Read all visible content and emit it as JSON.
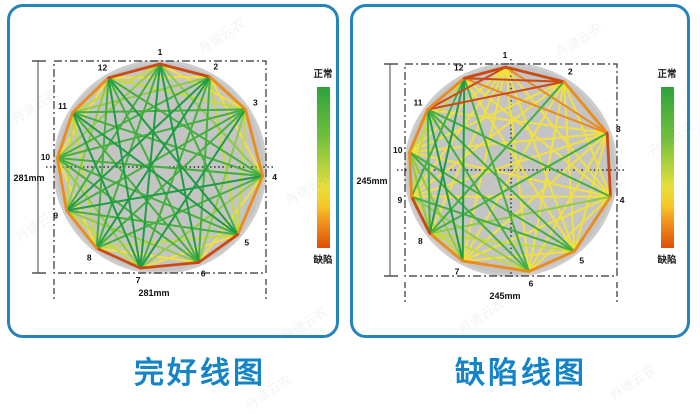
{
  "watermark": {
    "text": "舟谱云农"
  },
  "colors": {
    "panel_border": "#2584bb",
    "caption_blue": "#1584c7",
    "circle_fill": "#c4c4c4",
    "palette": {
      "R": "#cc4a12",
      "O": "#ec8b1a",
      "Y": "#f1e140",
      "YG": "#c3db3d",
      "LG": "#8fcc42",
      "G": "#44b03e",
      "DG": "#1f9c44"
    },
    "scale_gradient": [
      "#2ea23c",
      "#6fbe3d",
      "#aed23d",
      "#e8df3c",
      "#f6c728",
      "#f1921c",
      "#dd4e0c"
    ]
  },
  "panels": [
    {
      "id": "intact",
      "title": "完好线图",
      "dimension_height": "281mm",
      "dimension_width": "281mm",
      "colorbar": {
        "top_label": "正常",
        "bottom_label": "缺陷"
      },
      "has_vertical_centerline": false,
      "nodes": [
        {
          "label": "1",
          "angle": 90
        },
        {
          "label": "2",
          "angle": 61
        },
        {
          "label": "3",
          "angle": 34
        },
        {
          "label": "4",
          "angle": -5
        },
        {
          "label": "5",
          "angle": -41
        },
        {
          "label": "6",
          "angle": -68
        },
        {
          "label": "7",
          "angle": -101
        },
        {
          "label": "8",
          "angle": -128
        },
        {
          "label": "9",
          "angle": -155
        },
        {
          "label": "10",
          "angle": 175
        },
        {
          "label": "11",
          "angle": 148
        },
        {
          "label": "12",
          "angle": 120
        }
      ],
      "edges": [
        [
          "1",
          "2",
          "R"
        ],
        [
          "2",
          "3",
          "O"
        ],
        [
          "3",
          "4",
          "O"
        ],
        [
          "4",
          "5",
          "O"
        ],
        [
          "5",
          "6",
          "R"
        ],
        [
          "6",
          "7",
          "R"
        ],
        [
          "7",
          "8",
          "R"
        ],
        [
          "8",
          "9",
          "O"
        ],
        [
          "9",
          "10",
          "O"
        ],
        [
          "10",
          "11",
          "O"
        ],
        [
          "11",
          "12",
          "O"
        ],
        [
          "12",
          "1",
          "R"
        ],
        [
          "1",
          "3",
          "Y"
        ],
        [
          "2",
          "4",
          "Y"
        ],
        [
          "3",
          "5",
          "YG"
        ],
        [
          "4",
          "6",
          "Y"
        ],
        [
          "5",
          "7",
          "Y"
        ],
        [
          "6",
          "8",
          "Y"
        ],
        [
          "7",
          "9",
          "YG"
        ],
        [
          "8",
          "10",
          "Y"
        ],
        [
          "9",
          "11",
          "YG"
        ],
        [
          "10",
          "12",
          "Y"
        ],
        [
          "11",
          "1",
          "YG"
        ],
        [
          "12",
          "2",
          "Y"
        ],
        [
          "1",
          "4",
          "LG"
        ],
        [
          "2",
          "5",
          "YG"
        ],
        [
          "3",
          "6",
          "LG"
        ],
        [
          "4",
          "7",
          "LG"
        ],
        [
          "5",
          "8",
          "YG"
        ],
        [
          "6",
          "9",
          "LG"
        ],
        [
          "7",
          "10",
          "LG"
        ],
        [
          "8",
          "11",
          "YG"
        ],
        [
          "9",
          "12",
          "LG"
        ],
        [
          "10",
          "1",
          "LG"
        ],
        [
          "11",
          "2",
          "LG"
        ],
        [
          "12",
          "3",
          "YG"
        ],
        [
          "1",
          "5",
          "G"
        ],
        [
          "2",
          "6",
          "G"
        ],
        [
          "3",
          "7",
          "DG"
        ],
        [
          "4",
          "8",
          "G"
        ],
        [
          "5",
          "9",
          "G"
        ],
        [
          "6",
          "10",
          "G"
        ],
        [
          "7",
          "11",
          "DG"
        ],
        [
          "8",
          "12",
          "G"
        ],
        [
          "9",
          "1",
          "G"
        ],
        [
          "10",
          "2",
          "G"
        ],
        [
          "11",
          "3",
          "G"
        ],
        [
          "12",
          "4",
          "G"
        ],
        [
          "1",
          "6",
          "DG"
        ],
        [
          "2",
          "7",
          "G"
        ],
        [
          "3",
          "8",
          "G"
        ],
        [
          "4",
          "9",
          "DG"
        ],
        [
          "5",
          "10",
          "G"
        ],
        [
          "6",
          "11",
          "G"
        ],
        [
          "7",
          "12",
          "DG"
        ],
        [
          "8",
          "1",
          "G"
        ],
        [
          "9",
          "2",
          "DG"
        ],
        [
          "10",
          "3",
          "G"
        ],
        [
          "11",
          "4",
          "G"
        ],
        [
          "12",
          "5",
          "DG"
        ],
        [
          "1",
          "7",
          "DG"
        ],
        [
          "2",
          "8",
          "DG"
        ],
        [
          "3",
          "9",
          "G"
        ],
        [
          "4",
          "10",
          "G"
        ],
        [
          "5",
          "11",
          "DG"
        ],
        [
          "6",
          "12",
          "G"
        ]
      ]
    },
    {
      "id": "defect",
      "title": "缺陷线图",
      "dimension_height": "245mm",
      "dimension_width": "245mm",
      "colorbar": {
        "top_label": "正常",
        "bottom_label": "缺陷"
      },
      "has_vertical_centerline": true,
      "nodes": [
        {
          "label": "1",
          "angle": 93
        },
        {
          "label": "2",
          "angle": 59
        },
        {
          "label": "3",
          "angle": 21
        },
        {
          "label": "4",
          "angle": -15
        },
        {
          "label": "5",
          "angle": -52
        },
        {
          "label": "6",
          "angle": -80
        },
        {
          "label": "7",
          "angle": -118
        },
        {
          "label": "8",
          "angle": -142
        },
        {
          "label": "9",
          "angle": -165
        },
        {
          "label": "10",
          "angle": 170
        },
        {
          "label": "11",
          "angle": 144
        },
        {
          "label": "12",
          "angle": 117
        }
      ],
      "edges": [
        [
          "1",
          "2",
          "R"
        ],
        [
          "2",
          "3",
          "O"
        ],
        [
          "3",
          "4",
          "R"
        ],
        [
          "4",
          "5",
          "O"
        ],
        [
          "5",
          "6",
          "O"
        ],
        [
          "6",
          "7",
          "O"
        ],
        [
          "7",
          "8",
          "O"
        ],
        [
          "8",
          "9",
          "R"
        ],
        [
          "9",
          "10",
          "O"
        ],
        [
          "10",
          "11",
          "O"
        ],
        [
          "11",
          "12",
          "O"
        ],
        [
          "12",
          "1",
          "R"
        ],
        [
          "1",
          "3",
          "O"
        ],
        [
          "2",
          "4",
          "Y"
        ],
        [
          "3",
          "5",
          "Y"
        ],
        [
          "4",
          "6",
          "Y"
        ],
        [
          "5",
          "7",
          "Y"
        ],
        [
          "6",
          "8",
          "YG"
        ],
        [
          "7",
          "9",
          "YG"
        ],
        [
          "8",
          "10",
          "LG"
        ],
        [
          "9",
          "11",
          "YG"
        ],
        [
          "10",
          "12",
          "YG"
        ],
        [
          "11",
          "1",
          "R"
        ],
        [
          "12",
          "2",
          "R"
        ],
        [
          "1",
          "4",
          "Y"
        ],
        [
          "2",
          "5",
          "Y"
        ],
        [
          "3",
          "6",
          "Y"
        ],
        [
          "4",
          "7",
          "Y"
        ],
        [
          "5",
          "8",
          "YG"
        ],
        [
          "6",
          "9",
          "LG"
        ],
        [
          "7",
          "10",
          "LG"
        ],
        [
          "8",
          "11",
          "G"
        ],
        [
          "9",
          "12",
          "G"
        ],
        [
          "10",
          "1",
          "Y"
        ],
        [
          "11",
          "2",
          "R"
        ],
        [
          "12",
          "3",
          "O"
        ],
        [
          "1",
          "5",
          "Y"
        ],
        [
          "2",
          "6",
          "Y"
        ],
        [
          "3",
          "7",
          "Y"
        ],
        [
          "4",
          "8",
          "LG"
        ],
        [
          "5",
          "9",
          "G"
        ],
        [
          "6",
          "10",
          "G"
        ],
        [
          "7",
          "11",
          "DG"
        ],
        [
          "8",
          "12",
          "DG"
        ],
        [
          "9",
          "1",
          "Y"
        ],
        [
          "10",
          "2",
          "Y"
        ],
        [
          "11",
          "3",
          "Y"
        ],
        [
          "12",
          "4",
          "Y"
        ],
        [
          "1",
          "6",
          "Y"
        ],
        [
          "2",
          "7",
          "Y"
        ],
        [
          "3",
          "8",
          "G"
        ],
        [
          "4",
          "9",
          "Y"
        ],
        [
          "5",
          "10",
          "G"
        ],
        [
          "6",
          "11",
          "G"
        ],
        [
          "7",
          "12",
          "DG"
        ],
        [
          "8",
          "1",
          "Y"
        ],
        [
          "9",
          "2",
          "Y"
        ],
        [
          "10",
          "3",
          "Y"
        ],
        [
          "11",
          "4",
          "G"
        ],
        [
          "12",
          "5",
          "Y"
        ],
        [
          "1",
          "7",
          "Y"
        ],
        [
          "2",
          "8",
          "G"
        ],
        [
          "3",
          "9",
          "Y"
        ],
        [
          "4",
          "10",
          "Y"
        ],
        [
          "5",
          "11",
          "G"
        ],
        [
          "6",
          "12",
          "G"
        ]
      ]
    }
  ]
}
